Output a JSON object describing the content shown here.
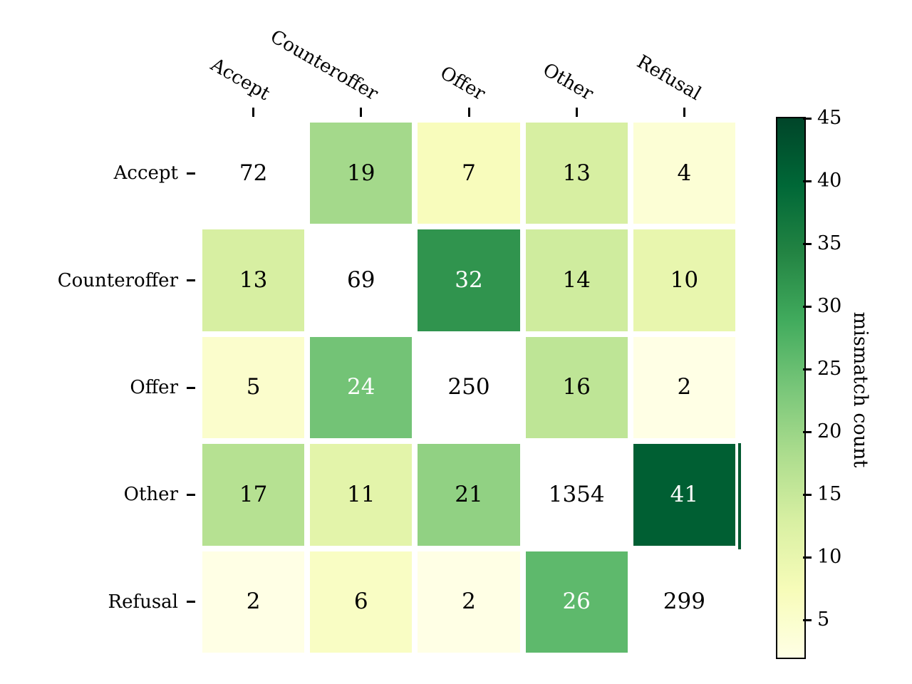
{
  "chart_data": {
    "type": "heatmap",
    "rows": [
      "Accept",
      "Counteroffer",
      "Offer",
      "Other",
      "Refusal"
    ],
    "cols": [
      "Accept",
      "Counteroffer",
      "Offer",
      "Other",
      "Refusal"
    ],
    "values": [
      [
        72,
        19,
        7,
        13,
        4
      ],
      [
        13,
        69,
        32,
        14,
        10
      ],
      [
        5,
        24,
        250,
        16,
        2
      ],
      [
        17,
        11,
        21,
        1354,
        41
      ],
      [
        2,
        6,
        2,
        26,
        299
      ]
    ],
    "diagonal_masked_white": true,
    "annotation_text_colors": {
      "dark_cells": "#ffffff",
      "light_cells": "#000000",
      "white_text_threshold_value": 23.5
    },
    "colormap_name": "YlGn",
    "colormap_stops": [
      "#ffffe5",
      "#f7fcb9",
      "#d9f0a3",
      "#addd8e",
      "#78c679",
      "#41ab5d",
      "#238443",
      "#006837",
      "#004529"
    ],
    "vmin": 2,
    "vmax": 45,
    "grid_line_color": "#ffffff",
    "background_color": "#ffffff",
    "colorbar": {
      "label": "mismatch count",
      "ticks": [
        5,
        10,
        15,
        20,
        25,
        30,
        35,
        40,
        45
      ],
      "outline_color": "#000000"
    },
    "artifact": {
      "color": "#025930"
    }
  }
}
